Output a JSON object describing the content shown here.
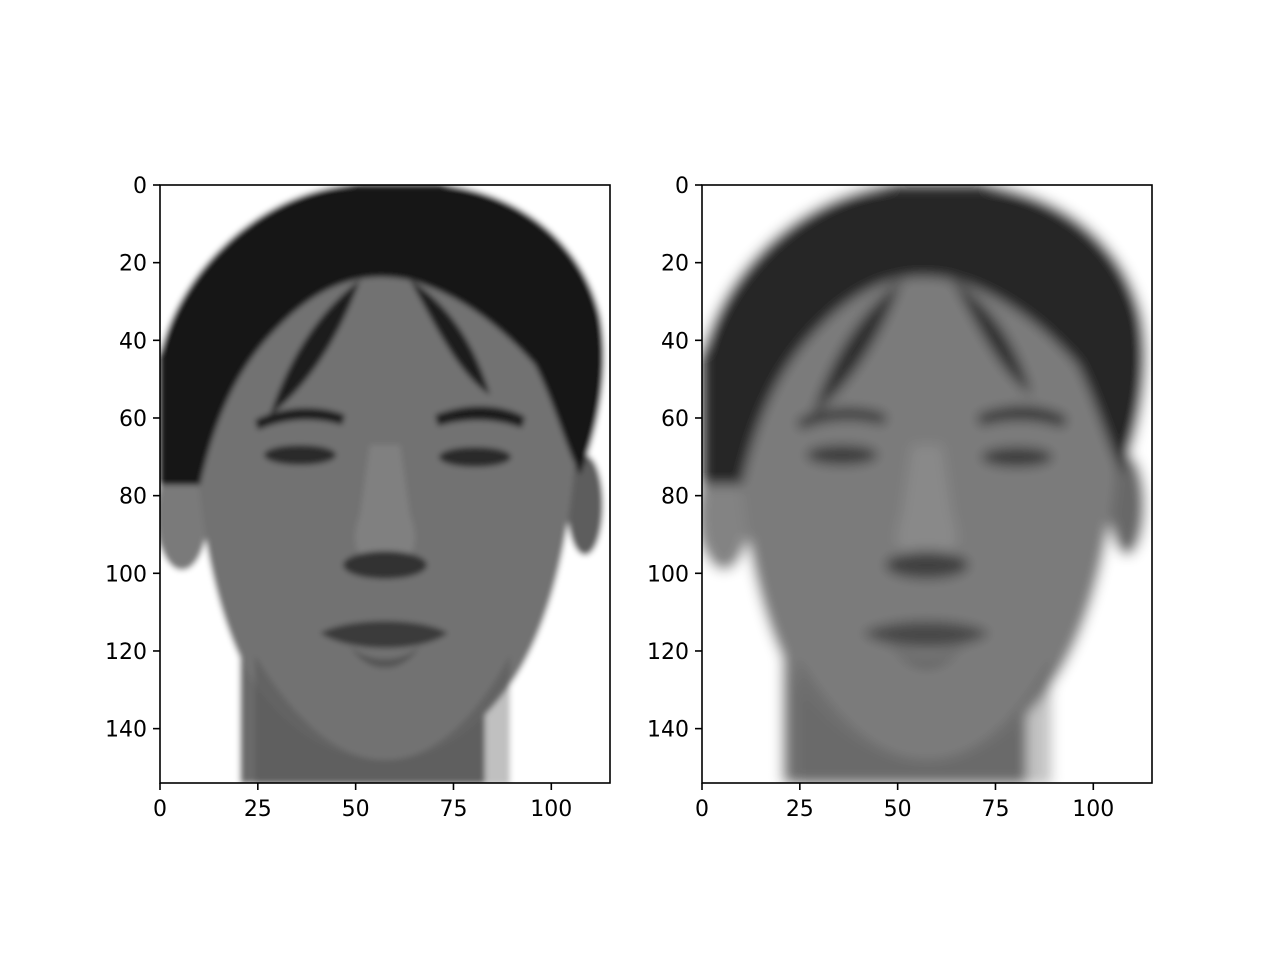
{
  "chart_data": [
    {
      "type": "image",
      "content": "grayscale face (original)",
      "xlim": [
        0,
        115
      ],
      "ylim": [
        154,
        0
      ],
      "x_ticks": [
        0,
        25,
        50,
        75,
        100
      ],
      "y_ticks": [
        0,
        20,
        40,
        60,
        80,
        100,
        120,
        140
      ],
      "x_tick_labels": [
        "0",
        "25",
        "50",
        "75",
        "100"
      ],
      "y_tick_labels": [
        "0",
        "20",
        "40",
        "60",
        "80",
        "100",
        "120",
        "140"
      ],
      "title": "",
      "xlabel": "",
      "ylabel": "",
      "grid": false
    },
    {
      "type": "image",
      "content": "grayscale face (reconstruction, smoother)",
      "xlim": [
        0,
        115
      ],
      "ylim": [
        154,
        0
      ],
      "x_ticks": [
        0,
        25,
        50,
        75,
        100
      ],
      "y_ticks": [
        0,
        20,
        40,
        60,
        80,
        100,
        120,
        140
      ],
      "x_tick_labels": [
        "0",
        "25",
        "50",
        "75",
        "100"
      ],
      "y_tick_labels": [
        "0",
        "20",
        "40",
        "60",
        "80",
        "100",
        "120",
        "140"
      ],
      "title": "",
      "xlabel": "",
      "ylabel": "",
      "grid": false
    }
  ]
}
